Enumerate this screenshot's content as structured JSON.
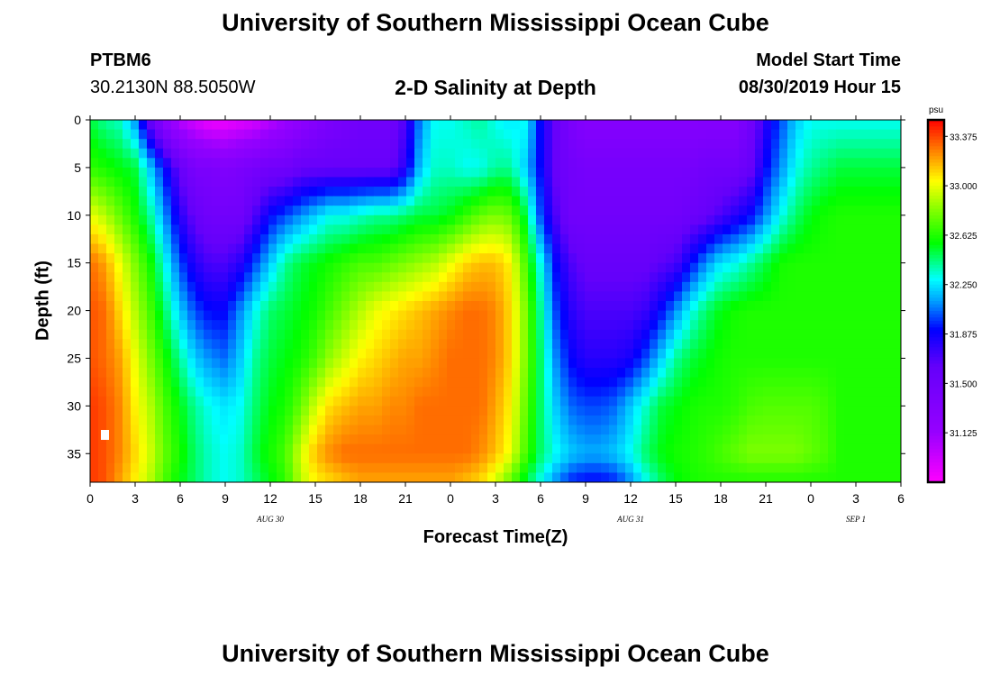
{
  "page": {
    "title_top": "University of Southern Mississippi Ocean Cube",
    "title_bottom": "University of Southern Mississippi Ocean Cube",
    "station_id": "PTBM6",
    "station_coords": "30.2130N 88.5050W",
    "model_label": "Model Start Time",
    "model_time": "08/30/2019 Hour 15"
  },
  "chart_data": {
    "type": "heatmap",
    "title": "2-D Salinity at Depth",
    "xlabel": "Forecast Time(Z)",
    "ylabel": "Depth (ft)",
    "x_range_hours": [
      0,
      54
    ],
    "y_range": [
      0,
      38
    ],
    "x_ticks": [
      "0",
      "3",
      "6",
      "9",
      "12",
      "15",
      "18",
      "21",
      "0",
      "3",
      "6",
      "9",
      "12",
      "15",
      "18",
      "21",
      "0",
      "3",
      "6"
    ],
    "y_ticks": [
      0,
      5,
      10,
      15,
      20,
      25,
      30,
      35
    ],
    "date_labels": [
      {
        "text": "AUG 30",
        "hour": 12
      },
      {
        "text": "AUG 31",
        "hour": 36
      },
      {
        "text": "SEP 1",
        "hour": 51
      }
    ],
    "colorbar": {
      "unit": "psu",
      "min": 30.75,
      "max": 33.5,
      "labels": [
        "33.375",
        "33.000",
        "32.625",
        "32.250",
        "31.875",
        "31.500",
        "31.125"
      ]
    },
    "z_time_hours": [
      0,
      1,
      2,
      3,
      4,
      5,
      6,
      7,
      8,
      9,
      10,
      11,
      12,
      13,
      14,
      15,
      16,
      17,
      18,
      19,
      20,
      21,
      22,
      23,
      24,
      25,
      26,
      27,
      28,
      29,
      30,
      31,
      32,
      33,
      34,
      35,
      36,
      37,
      38,
      39,
      40,
      41,
      42,
      43,
      44,
      45,
      46,
      47,
      48,
      49,
      50,
      51,
      52,
      53,
      54
    ],
    "z_depth_ft": [
      0,
      5,
      10,
      15,
      20,
      25,
      30,
      35,
      38
    ],
    "z_salinity_psu": [
      [
        32.5,
        32.4,
        32.35,
        32.1,
        31.6,
        31.2,
        31.0,
        30.9,
        30.8,
        30.8,
        30.85,
        30.9,
        31.0,
        31.1,
        31.2,
        31.3,
        31.4,
        31.45,
        31.5,
        31.5,
        31.5,
        31.7,
        32.1,
        32.3,
        32.3,
        32.35,
        32.4,
        32.3,
        32.25,
        32.3,
        31.9,
        31.6,
        31.4,
        31.3,
        31.3,
        31.3,
        31.3,
        31.3,
        31.3,
        31.3,
        31.3,
        31.3,
        31.3,
        31.3,
        31.5,
        31.8,
        32.0,
        32.2,
        32.3,
        32.3,
        32.3,
        32.3,
        32.3,
        32.3,
        32.3
      ],
      [
        32.65,
        32.6,
        32.55,
        32.5,
        32.2,
        31.9,
        31.6,
        31.4,
        31.4,
        31.35,
        31.4,
        31.45,
        31.5,
        31.5,
        31.6,
        31.6,
        31.6,
        31.6,
        31.6,
        31.6,
        31.6,
        31.8,
        32.2,
        32.35,
        32.35,
        32.3,
        32.3,
        32.4,
        32.4,
        32.2,
        31.9,
        31.6,
        31.5,
        31.45,
        31.45,
        31.45,
        31.45,
        31.45,
        31.45,
        31.45,
        31.45,
        31.5,
        31.5,
        31.5,
        31.6,
        31.9,
        32.1,
        32.3,
        32.4,
        32.45,
        32.5,
        32.5,
        32.5,
        32.5,
        32.5
      ],
      [
        33.0,
        32.9,
        32.75,
        32.6,
        32.4,
        32.1,
        31.8,
        31.6,
        31.5,
        31.5,
        31.5,
        31.7,
        31.9,
        32.0,
        32.1,
        32.2,
        32.3,
        32.3,
        32.35,
        32.4,
        32.4,
        32.45,
        32.5,
        32.5,
        32.55,
        32.65,
        32.75,
        32.8,
        32.75,
        32.5,
        32.0,
        31.7,
        31.5,
        31.5,
        31.5,
        31.5,
        31.5,
        31.5,
        31.5,
        31.5,
        31.55,
        31.6,
        31.7,
        31.8,
        31.9,
        32.1,
        32.3,
        32.45,
        32.55,
        32.6,
        32.62,
        32.62,
        32.62,
        32.62,
        32.62
      ],
      [
        33.3,
        33.2,
        33.0,
        32.8,
        32.6,
        32.3,
        32.0,
        31.8,
        31.7,
        31.7,
        31.8,
        32.0,
        32.2,
        32.4,
        32.5,
        32.55,
        32.6,
        32.65,
        32.7,
        32.7,
        32.75,
        32.8,
        32.85,
        32.9,
        33.0,
        33.1,
        33.15,
        33.15,
        33.05,
        32.7,
        32.3,
        31.9,
        31.7,
        31.6,
        31.6,
        31.6,
        31.6,
        31.6,
        31.65,
        31.7,
        31.9,
        32.1,
        32.25,
        32.3,
        32.4,
        32.5,
        32.6,
        32.62,
        32.62,
        32.62,
        32.62,
        32.62,
        32.62,
        32.62,
        32.62
      ],
      [
        33.35,
        33.3,
        33.1,
        32.9,
        32.7,
        32.45,
        32.2,
        32.0,
        31.9,
        31.9,
        32.1,
        32.3,
        32.45,
        32.5,
        32.55,
        32.6,
        32.7,
        32.8,
        32.9,
        33.0,
        33.05,
        33.1,
        33.15,
        33.2,
        33.25,
        33.3,
        33.3,
        33.25,
        33.1,
        32.8,
        32.4,
        32.0,
        31.8,
        31.7,
        31.7,
        31.7,
        31.7,
        31.75,
        31.9,
        32.1,
        32.3,
        32.45,
        32.55,
        32.6,
        32.62,
        32.62,
        32.62,
        32.62,
        32.62,
        32.62,
        32.62,
        32.62,
        32.62,
        32.62,
        32.62
      ],
      [
        33.35,
        33.3,
        33.2,
        33.0,
        32.8,
        32.6,
        32.4,
        32.2,
        32.1,
        32.05,
        32.2,
        32.4,
        32.5,
        32.55,
        32.6,
        32.7,
        32.85,
        32.95,
        33.05,
        33.1,
        33.15,
        33.2,
        33.2,
        33.25,
        33.3,
        33.3,
        33.3,
        33.25,
        33.1,
        32.8,
        32.45,
        32.1,
        31.9,
        31.8,
        31.8,
        31.8,
        31.85,
        32.0,
        32.2,
        32.4,
        32.5,
        32.55,
        32.6,
        32.62,
        32.62,
        32.62,
        32.62,
        32.62,
        32.62,
        32.62,
        32.62,
        32.62,
        32.62,
        32.62,
        32.62
      ],
      [
        33.4,
        33.35,
        33.25,
        33.05,
        32.9,
        32.7,
        32.55,
        32.4,
        32.3,
        32.25,
        32.3,
        32.45,
        32.55,
        32.6,
        32.75,
        32.95,
        33.1,
        33.15,
        33.2,
        33.2,
        33.25,
        33.25,
        33.3,
        33.3,
        33.3,
        33.3,
        33.3,
        33.2,
        33.05,
        32.75,
        32.45,
        32.2,
        32.05,
        32.0,
        32.0,
        32.05,
        32.2,
        32.35,
        32.5,
        32.55,
        32.6,
        32.62,
        32.62,
        32.65,
        32.7,
        32.72,
        32.72,
        32.72,
        32.72,
        32.68,
        32.62,
        32.62,
        32.62,
        32.62,
        32.62
      ],
      [
        33.4,
        33.35,
        33.25,
        33.1,
        32.95,
        32.75,
        32.6,
        32.45,
        32.35,
        32.3,
        32.35,
        32.5,
        32.6,
        32.7,
        32.95,
        33.15,
        33.25,
        33.3,
        33.3,
        33.3,
        33.3,
        33.3,
        33.3,
        33.3,
        33.3,
        33.3,
        33.25,
        33.15,
        33.0,
        32.7,
        32.45,
        32.3,
        32.2,
        32.15,
        32.15,
        32.2,
        32.3,
        32.45,
        32.55,
        32.6,
        32.62,
        32.65,
        32.7,
        32.75,
        32.8,
        32.8,
        32.8,
        32.8,
        32.75,
        32.7,
        32.62,
        32.62,
        32.62,
        32.62,
        32.62
      ],
      [
        33.4,
        33.35,
        33.2,
        33.05,
        32.9,
        32.7,
        32.55,
        32.45,
        32.35,
        32.3,
        32.35,
        32.45,
        32.55,
        32.65,
        32.9,
        33.05,
        33.1,
        33.15,
        33.2,
        33.2,
        33.2,
        33.2,
        33.2,
        33.2,
        33.2,
        33.15,
        33.1,
        32.95,
        32.75,
        32.5,
        32.3,
        32.1,
        31.95,
        31.9,
        31.9,
        31.95,
        32.1,
        32.3,
        32.45,
        32.55,
        32.6,
        32.62,
        32.62,
        32.62,
        32.62,
        32.62,
        32.62,
        32.62,
        32.62,
        32.62,
        32.62,
        32.62,
        32.62,
        32.62,
        32.62
      ]
    ]
  }
}
